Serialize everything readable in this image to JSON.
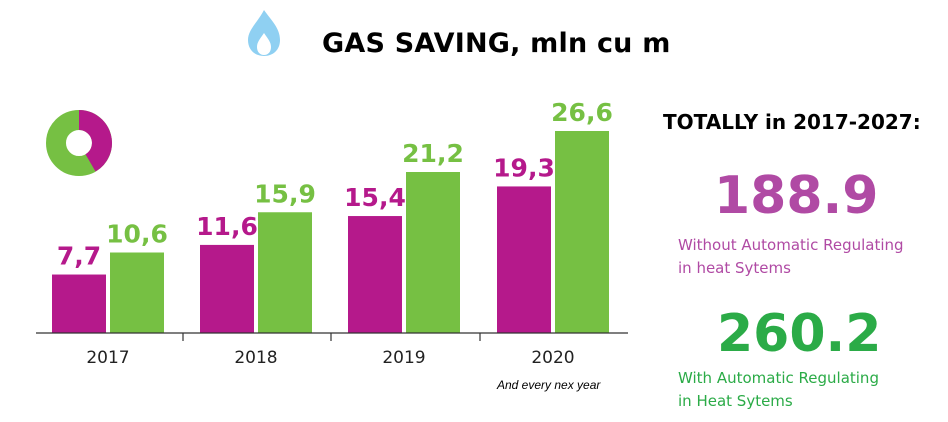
{
  "title": "GAS SAVING, mln cu m",
  "icons": {
    "flame": "gas-flame-icon",
    "donut": "donut-chart-icon"
  },
  "colors": {
    "magenta": "#b5198b",
    "green": "#76c043",
    "flame": "#8fd0f2",
    "total_magenta": "#b04aa4",
    "total_green": "#2bab47"
  },
  "chart_data": {
    "type": "bar",
    "categories": [
      "2017",
      "2018",
      "2019",
      "2020"
    ],
    "series": [
      {
        "values": [
          7.7,
          11.6,
          15.4,
          19.3
        ],
        "labels": [
          "7,7",
          "11,6",
          "15,4",
          "19,3"
        ]
      },
      {
        "values": [
          10.6,
          15.9,
          21.2,
          26.6
        ],
        "labels": [
          "10,6",
          "15,9",
          "21,2",
          "26,6"
        ]
      }
    ],
    "ylim": [
      0,
      26.6
    ],
    "grid": false,
    "annotation": "And every nex year"
  },
  "totals": {
    "heading": "TOTALLY in 2017-2027:",
    "without": {
      "value": "188.9",
      "line1": "Without Automatic Regulating",
      "line2": "in heat Sytems"
    },
    "with": {
      "value": "260.2",
      "line1": "With Automatic Regulating",
      "line2": "in Heat Sytems"
    }
  }
}
